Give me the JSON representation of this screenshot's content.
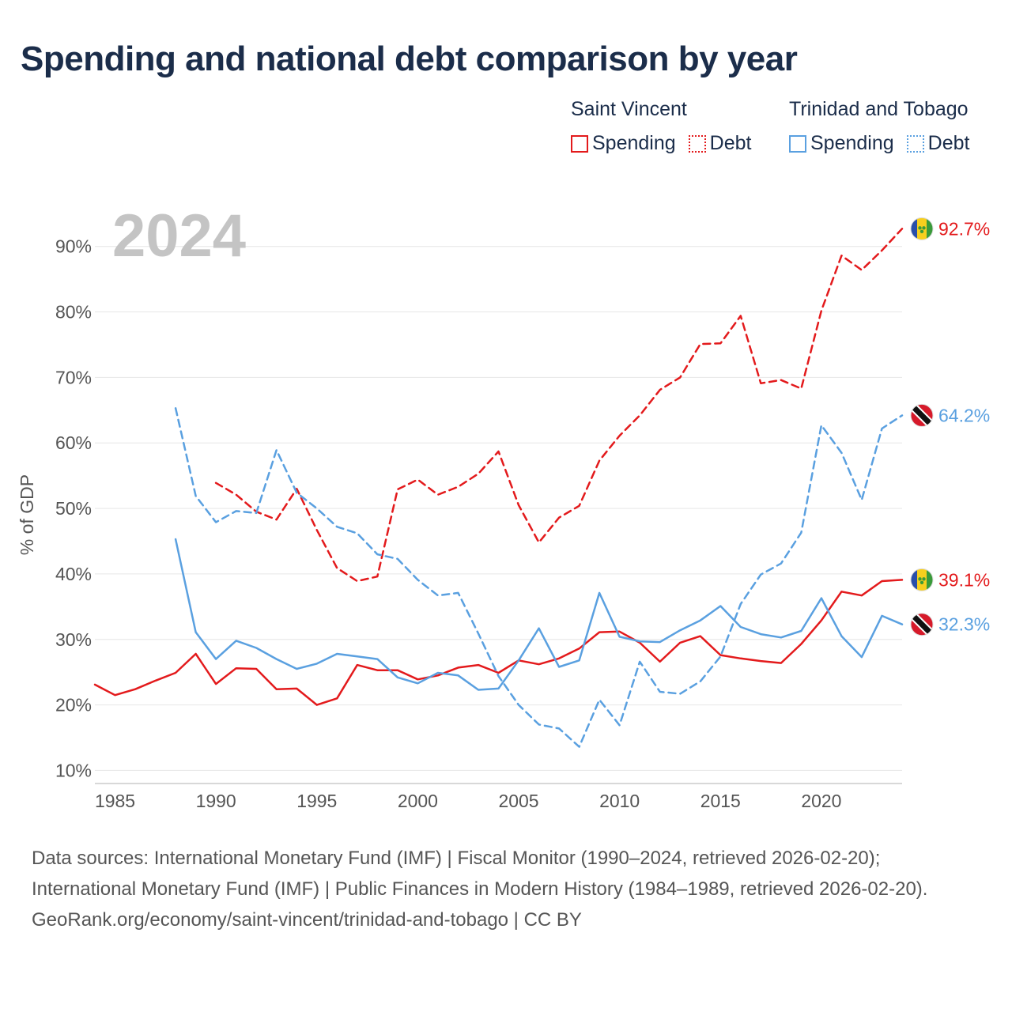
{
  "title": "Spending and national debt comparison by year",
  "legend": {
    "groups": [
      {
        "name": "Saint Vincent",
        "color": "#e31a1c",
        "items": [
          "Spending",
          "Debt"
        ]
      },
      {
        "name": "Trinidad and Tobago",
        "color": "#5aa0e0",
        "items": [
          "Spending",
          "Debt"
        ]
      }
    ]
  },
  "chart_data": {
    "type": "line",
    "year_label": "2024",
    "ylabel": "% of GDP",
    "xlim": [
      1984,
      2024
    ],
    "ylim": [
      8,
      96
    ],
    "yticks": [
      10,
      20,
      30,
      40,
      50,
      60,
      70,
      80,
      90
    ],
    "ytick_labels": [
      "10%",
      "20%",
      "30%",
      "40%",
      "50%",
      "60%",
      "70%",
      "80%",
      "90%"
    ],
    "xticks": [
      1985,
      1990,
      1995,
      2000,
      2005,
      2010,
      2015,
      2020
    ],
    "xtick_labels": [
      "1985",
      "1990",
      "1995",
      "2000",
      "2005",
      "2010",
      "2015",
      "2020"
    ],
    "series": [
      {
        "name": "Saint Vincent Spending",
        "country": "Saint Vincent",
        "kind": "Spending",
        "color": "#e31a1c",
        "dashed": false,
        "flag": "saint-vincent",
        "start_year": 1984,
        "end_label": "39.1%",
        "values": [
          23.1,
          21.5,
          22.4,
          23.7,
          24.9,
          27.8,
          23.2,
          25.6,
          25.5,
          22.4,
          22.5,
          20.0,
          21.0,
          26.1,
          25.3,
          25.3,
          23.9,
          24.5,
          25.7,
          26.1,
          24.9,
          26.8,
          26.2,
          27.1,
          28.6,
          31.1,
          31.2,
          29.5,
          26.6,
          29.5,
          30.5,
          27.6,
          27.1,
          26.7,
          26.4,
          29.3,
          32.9,
          37.3,
          36.7,
          38.9,
          39.1
        ]
      },
      {
        "name": "Saint Vincent Debt",
        "country": "Saint Vincent",
        "kind": "Debt",
        "color": "#e31a1c",
        "dashed": true,
        "flag": "saint-vincent",
        "start_year": 1990,
        "end_label": "92.7%",
        "values": [
          53.9,
          52.1,
          49.5,
          48.3,
          53.0,
          46.7,
          40.9,
          38.9,
          39.6,
          52.9,
          54.4,
          52.1,
          53.3,
          55.3,
          58.7,
          50.5,
          44.8,
          48.6,
          50.4,
          57.3,
          61.1,
          64.2,
          68.1,
          70.0,
          75.1,
          75.2,
          79.4,
          69.1,
          69.6,
          68.3,
          80.2,
          88.6,
          86.4,
          89.4,
          92.7
        ]
      },
      {
        "name": "Trinidad and Tobago Spending",
        "country": "Trinidad and Tobago",
        "kind": "Spending",
        "color": "#5aa0e0",
        "dashed": false,
        "flag": "trinidad-and-tobago",
        "start_year": 1988,
        "end_label": "32.3%",
        "values": [
          45.3,
          31.1,
          27.0,
          29.8,
          28.7,
          27.0,
          25.5,
          26.3,
          27.8,
          27.4,
          27.0,
          24.2,
          23.3,
          24.9,
          24.5,
          22.3,
          22.5,
          26.8,
          31.7,
          25.8,
          26.8,
          37.1,
          30.4,
          29.7,
          29.6,
          31.4,
          32.9,
          35.1,
          31.9,
          30.8,
          30.3,
          31.3,
          36.3,
          30.5,
          27.3,
          33.6,
          32.3
        ]
      },
      {
        "name": "Trinidad and Tobago Debt",
        "country": "Trinidad and Tobago",
        "kind": "Debt",
        "color": "#5aa0e0",
        "dashed": true,
        "flag": "trinidad-and-tobago",
        "start_year": 1988,
        "end_label": "64.2%",
        "values": [
          65.3,
          51.9,
          47.9,
          49.6,
          49.3,
          58.9,
          52.4,
          50.0,
          47.2,
          46.2,
          43.0,
          42.3,
          39.1,
          36.7,
          37.1,
          30.9,
          24.4,
          20.0,
          17.0,
          16.4,
          13.6,
          20.8,
          16.9,
          26.6,
          22.0,
          21.7,
          23.6,
          27.4,
          35.4,
          39.9,
          41.6,
          46.3,
          62.7,
          58.5,
          51.3,
          62.2,
          64.2
        ]
      }
    ]
  },
  "footer": {
    "sources": "Data sources: International Monetary Fund (IMF) | Fiscal Monitor (1990–2024, retrieved 2026-02-20); International Monetary Fund (IMF) | Public Finances in Modern History (1984–1989, retrieved 2026-02-20).",
    "credit": "GeoRank.org/economy/saint-vincent/trinidad-and-tobago | CC BY"
  }
}
